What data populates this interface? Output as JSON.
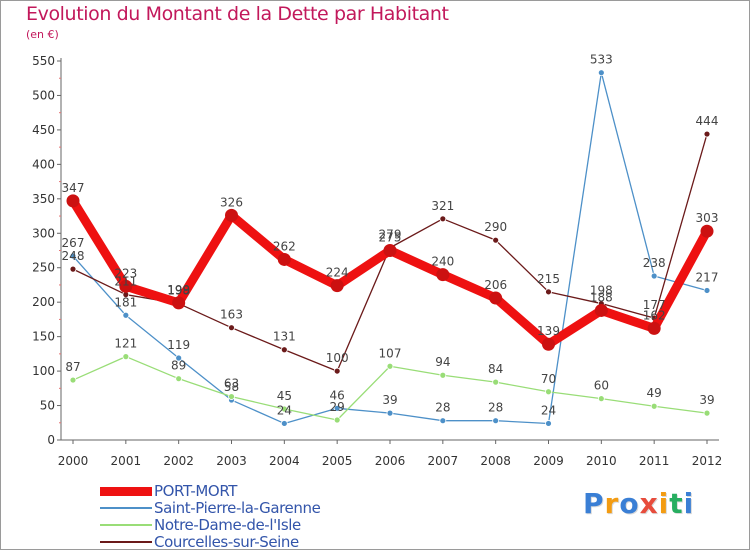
{
  "title": "Evolution du Montant de la Dette par Habitant",
  "unit": "(en €)",
  "chart_data": {
    "type": "line",
    "title": "Evolution du Montant de la Dette par Habitant",
    "ylabel": "(en €)",
    "x": [
      "2000",
      "2001",
      "2002",
      "2003",
      "2004",
      "2005",
      "2006",
      "2007",
      "2008",
      "2009",
      "2010",
      "2011",
      "2012"
    ],
    "ylim": [
      0,
      550
    ],
    "yticks": [
      0,
      50,
      100,
      150,
      200,
      250,
      300,
      350,
      400,
      450,
      500,
      550
    ],
    "grid": false,
    "legend_position": "bottom-left",
    "series": [
      {
        "name": "PORT-MORT",
        "color": "#ee1111",
        "values": [
          347,
          223,
          199,
          326,
          262,
          224,
          275,
          240,
          206,
          139,
          188,
          162,
          303
        ]
      },
      {
        "name": "Saint-Pierre-la-Garenne",
        "color": "#4d90c8",
        "values": [
          267,
          181,
          119,
          58,
          24,
          46,
          39,
          28,
          28,
          24,
          533,
          238,
          217
        ]
      },
      {
        "name": "Notre-Dame-de-l'Isle",
        "color": "#99dd77",
        "values": [
          87,
          121,
          89,
          63,
          45,
          29,
          107,
          94,
          84,
          70,
          60,
          49,
          39
        ]
      },
      {
        "name": "Courcelles-sur-Seine",
        "color": "#6b1a1a",
        "values": [
          248,
          211,
          198,
          163,
          131,
          100,
          279,
          321,
          290,
          215,
          198,
          177,
          444
        ]
      }
    ]
  },
  "logo": {
    "text": "Proxiti",
    "letters": [
      {
        "ch": "P",
        "color": "#3a7fd5"
      },
      {
        "ch": "r",
        "color": "#f39c12"
      },
      {
        "ch": "o",
        "color": "#3a7fd5"
      },
      {
        "ch": "x",
        "color": "#e74c3c"
      },
      {
        "ch": "i",
        "color": "#f39c12"
      },
      {
        "ch": "t",
        "color": "#27ae60"
      },
      {
        "ch": "i",
        "color": "#3a7fd5"
      }
    ]
  }
}
